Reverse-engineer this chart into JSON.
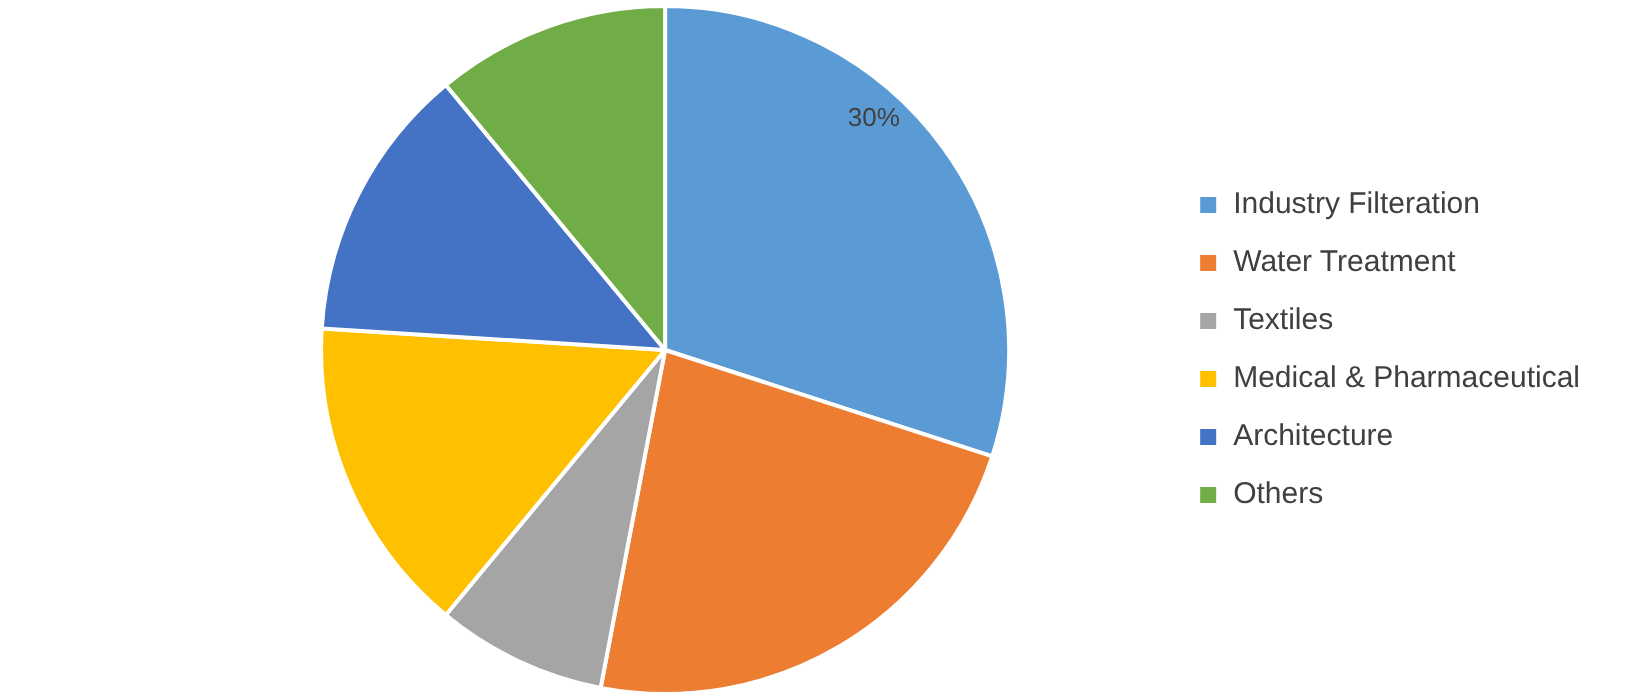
{
  "chart_data": {
    "type": "pie",
    "categories": [
      "Industry Filteration",
      "Water Treatment",
      "Textiles",
      "Medical & Pharmaceutical",
      "Architecture",
      "Others"
    ],
    "values": [
      30,
      23,
      8,
      15,
      13,
      11
    ],
    "colors": [
      "#5b9bd5",
      "#ed7d31",
      "#a5a5a5",
      "#ffc000",
      "#4472c4",
      "#70ad47"
    ],
    "value_labels": [
      "30%",
      null,
      null,
      null,
      null,
      null
    ],
    "legend": "right"
  }
}
